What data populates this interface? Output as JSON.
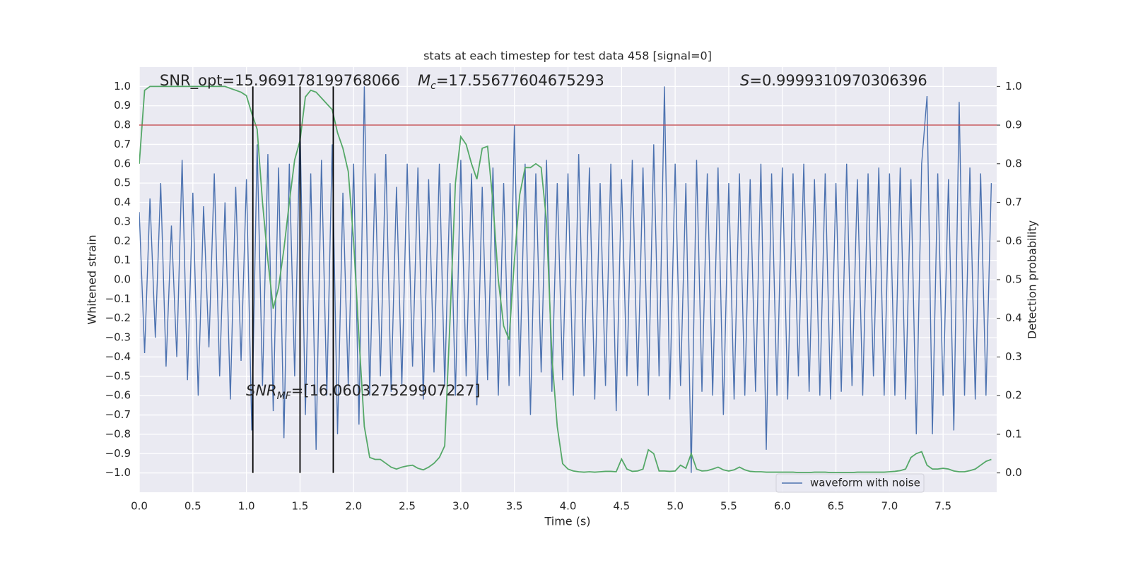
{
  "chart_data": {
    "type": "line",
    "title": "stats at each timestep for test data 458 [signal=0]",
    "xlabel": "Time (s)",
    "ylabel": "Whitened strain",
    "y2label": "Detection probability",
    "xlim": [
      0,
      8
    ],
    "ylim": [
      -1.1,
      1.1
    ],
    "y2lim": [
      -0.05,
      1.05
    ],
    "grid": true,
    "legend": "lower right",
    "xticks": [
      {
        "value": 0,
        "label": "0.0"
      },
      0.5,
      {
        "value": 1,
        "label": "1.0"
      },
      1.5,
      {
        "value": 2,
        "label": "2.0"
      },
      2.5,
      {
        "value": 3,
        "label": "3.0"
      },
      3.5,
      {
        "value": 4,
        "label": "4.0"
      },
      4.5,
      {
        "value": 5,
        "label": "5.0"
      },
      5.5,
      {
        "value": 6,
        "label": "6.0"
      },
      6.5,
      {
        "value": 7,
        "label": "7.0"
      },
      7.5
    ],
    "yticks": [
      {
        "value": -1,
        "label": "−1.0"
      },
      {
        "value": -0.9,
        "label": "−0.9"
      },
      {
        "value": -0.8,
        "label": "−0.8"
      },
      {
        "value": -0.7,
        "label": "−0.7"
      },
      {
        "value": -0.6,
        "label": "−0.6"
      },
      {
        "value": -0.5,
        "label": "−0.5"
      },
      {
        "value": -0.4,
        "label": "−0.4"
      },
      {
        "value": -0.3,
        "label": "−0.3"
      },
      {
        "value": -0.2,
        "label": "−0.2"
      },
      {
        "value": -0.1,
        "label": "−0.1"
      },
      {
        "value": 0,
        "label": "0.0"
      },
      0.1,
      0.2,
      0.3,
      0.4,
      0.5,
      0.6,
      0.7,
      0.8,
      0.9,
      {
        "value": 1,
        "label": "1.0"
      }
    ],
    "y2ticks": [
      {
        "value": 0,
        "label": "0.0"
      },
      0.1,
      0.2,
      0.3,
      0.4,
      0.5,
      0.6,
      0.7,
      0.8,
      0.9,
      {
        "value": 1,
        "label": "1.0"
      }
    ],
    "hlines": [
      {
        "value": 0.8,
        "color": "#c44e52"
      }
    ],
    "vlines": [
      1.06,
      1.5,
      1.81
    ],
    "vline_color": "#000000",
    "vline_range": [
      -1,
      1
    ],
    "annotations": [
      {
        "text": "SNR_opt=15.969178199768066"
      },
      {
        "italic": "M",
        "sub": "c",
        "text": "=17.55677604675293"
      },
      {
        "italic": "S",
        "text": "=0.9999310970306396"
      },
      {
        "italic": "SNR",
        "sub": "MF",
        "text": "=[16.060327529907227]"
      }
    ],
    "x": [
      0,
      0.05,
      0.1,
      0.15,
      0.2,
      0.25,
      0.3,
      0.35,
      0.4,
      0.45,
      0.5,
      0.55,
      0.6,
      0.65,
      0.7,
      0.75,
      0.8,
      0.85,
      0.9,
      0.95,
      1,
      1.05,
      1.1,
      1.15,
      1.2,
      1.25,
      1.3,
      1.35,
      1.4,
      1.45,
      1.5,
      1.55,
      1.6,
      1.65,
      1.7,
      1.75,
      1.8,
      1.85,
      1.9,
      1.95,
      2,
      2.05,
      2.1,
      2.15,
      2.2,
      2.25,
      2.3,
      2.35,
      2.4,
      2.45,
      2.5,
      2.55,
      2.6,
      2.65,
      2.7,
      2.75,
      2.8,
      2.85,
      2.9,
      2.95,
      3,
      3.05,
      3.1,
      3.15,
      3.2,
      3.25,
      3.3,
      3.35,
      3.4,
      3.45,
      3.5,
      3.55,
      3.6,
      3.65,
      3.7,
      3.75,
      3.8,
      3.85,
      3.9,
      3.95,
      4,
      4.05,
      4.1,
      4.15,
      4.2,
      4.25,
      4.3,
      4.35,
      4.4,
      4.45,
      4.5,
      4.55,
      4.6,
      4.65,
      4.7,
      4.75,
      4.8,
      4.85,
      4.9,
      4.95,
      5,
      5.05,
      5.1,
      5.15,
      5.2,
      5.25,
      5.3,
      5.35,
      5.4,
      5.45,
      5.5,
      5.55,
      5.6,
      5.65,
      5.7,
      5.75,
      5.8,
      5.85,
      5.9,
      5.95,
      6,
      6.05,
      6.1,
      6.15,
      6.2,
      6.25,
      6.3,
      6.35,
      6.4,
      6.45,
      6.5,
      6.55,
      6.6,
      6.65,
      6.7,
      6.75,
      6.8,
      6.85,
      6.9,
      6.95,
      7,
      7.05,
      7.1,
      7.15,
      7.2,
      7.25,
      7.3,
      7.35,
      7.4,
      7.45,
      7.5,
      7.55,
      7.6,
      7.65,
      7.7,
      7.75,
      7.8,
      7.85,
      7.9,
      7.95
    ],
    "series": [
      {
        "name": "waveform with noise",
        "color": "#4c72b0",
        "values": [
          0.35,
          -0.38,
          0.42,
          -0.3,
          0.5,
          -0.45,
          0.28,
          -0.4,
          0.62,
          -0.52,
          0.45,
          -0.6,
          0.38,
          -0.35,
          0.55,
          -0.5,
          0.4,
          -0.62,
          0.48,
          -0.42,
          0.52,
          -0.78,
          0.7,
          -0.55,
          0.65,
          -0.68,
          0.58,
          -0.82,
          0.6,
          -0.5,
          0.8,
          -0.7,
          0.55,
          -0.88,
          0.62,
          -0.6,
          0.7,
          -0.8,
          0.45,
          -0.55,
          0.6,
          -0.75,
          1.0,
          -0.6,
          0.55,
          -0.5,
          0.65,
          -0.58,
          0.48,
          -0.55,
          0.6,
          -0.45,
          0.58,
          -0.62,
          0.52,
          -0.48,
          0.6,
          -0.55,
          0.5,
          -0.6,
          0.62,
          -0.5,
          0.55,
          -0.65,
          0.48,
          -0.52,
          0.58,
          -0.6,
          0.5,
          -0.55,
          0.8,
          -0.5,
          0.6,
          -0.7,
          0.55,
          -0.48,
          0.62,
          -0.58,
          0.5,
          -0.52,
          0.55,
          -0.6,
          0.65,
          -0.5,
          0.58,
          -0.62,
          0.5,
          -0.55,
          0.6,
          -0.68,
          0.52,
          -0.5,
          0.62,
          -0.55,
          0.58,
          -0.6,
          0.7,
          -0.5,
          1.0,
          -0.62,
          0.6,
          -0.55,
          0.5,
          -1.0,
          0.62,
          -0.58,
          0.55,
          -0.6,
          0.58,
          -0.7,
          0.5,
          -0.62,
          0.55,
          -0.6,
          0.52,
          -0.58,
          0.6,
          -0.88,
          0.55,
          -0.6,
          0.58,
          -0.62,
          0.55,
          -0.5,
          0.6,
          -0.58,
          0.52,
          -0.6,
          0.55,
          -0.62,
          0.5,
          -0.58,
          0.6,
          -0.55,
          0.52,
          -0.6,
          0.55,
          -0.5,
          0.58,
          -0.6,
          0.55,
          -0.6,
          0.58,
          -0.62,
          0.52,
          -0.8,
          0.6,
          0.95,
          -0.8,
          0.55,
          -0.6,
          0.52,
          -0.78,
          0.92,
          -0.6,
          0.58,
          -0.62,
          0.55,
          -0.6,
          0.5
        ]
      },
      {
        "color": "#55a868",
        "axis": "y2",
        "values": [
          0.8,
          0.99,
          1.0,
          1.0,
          1.0,
          1.0,
          1.0,
          1.0,
          1.0,
          1.0,
          1.0,
          1.0,
          1.0,
          1.0,
          1.0,
          1.0,
          1.0,
          0.995,
          0.99,
          0.985,
          0.976,
          0.93,
          0.889,
          0.7,
          0.55,
          0.425,
          0.48,
          0.58,
          0.7,
          0.81,
          0.86,
          0.973,
          0.99,
          0.985,
          0.97,
          0.955,
          0.94,
          0.88,
          0.84,
          0.78,
          0.6,
          0.35,
          0.12,
          0.04,
          0.035,
          0.035,
          0.025,
          0.015,
          0.01,
          0.015,
          0.018,
          0.02,
          0.012,
          0.008,
          0.015,
          0.025,
          0.04,
          0.07,
          0.4,
          0.75,
          0.87,
          0.85,
          0.8,
          0.76,
          0.84,
          0.845,
          0.7,
          0.5,
          0.38,
          0.345,
          0.55,
          0.72,
          0.79,
          0.79,
          0.8,
          0.79,
          0.65,
          0.3,
          0.12,
          0.024,
          0.01,
          0.005,
          0.003,
          0.002,
          0.003,
          0.002,
          0.003,
          0.004,
          0.004,
          0.003,
          0.036,
          0.01,
          0.004,
          0.005,
          0.01,
          0.06,
          0.05,
          0.005,
          0.005,
          0.004,
          0.005,
          0.02,
          0.012,
          0.05,
          0.01,
          0.005,
          0.006,
          0.01,
          0.015,
          0.008,
          0.005,
          0.008,
          0.015,
          0.008,
          0.004,
          0.003,
          0.003,
          0.002,
          0.002,
          0.002,
          0.002,
          0.002,
          0.002,
          0.001,
          0.001,
          0.001,
          0.002,
          0.002,
          0.002,
          0.001,
          0.001,
          0.001,
          0.001,
          0.001,
          0.002,
          0.002,
          0.002,
          0.002,
          0.002,
          0.002,
          0.003,
          0.004,
          0.006,
          0.01,
          0.04,
          0.05,
          0.055,
          0.02,
          0.01,
          0.01,
          0.012,
          0.01,
          0.005,
          0.003,
          0.003,
          0.006,
          0.01,
          0.02,
          0.03,
          0.035
        ]
      }
    ]
  }
}
